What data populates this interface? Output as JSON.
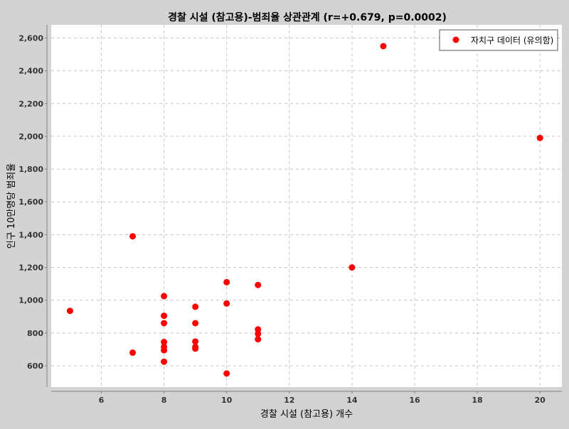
{
  "chart_data": {
    "type": "scatter",
    "title": "경찰 시설 (참고용)-범죄율 상관관계 (r=+0.679, p=0.0002)",
    "xlabel": "경찰 시설 (참고용) 개수",
    "ylabel": "인구 10만명당 범죄율",
    "xlim": [
      4.4,
      20.7
    ],
    "ylim": [
      470,
      2680
    ],
    "x_ticks": [
      6,
      8,
      10,
      12,
      14,
      16,
      18,
      20
    ],
    "y_ticks": [
      600,
      800,
      1000,
      1200,
      1400,
      1600,
      1800,
      2000,
      2200,
      2400,
      2600
    ],
    "x_tick_labels": [
      "6",
      "8",
      "10",
      "12",
      "14",
      "16",
      "18",
      "20"
    ],
    "y_tick_labels": [
      "600",
      "800",
      "1,000",
      "1,200",
      "1,400",
      "1,600",
      "1,800",
      "2,000",
      "2,200",
      "2,400",
      "2,600"
    ],
    "grid": true,
    "legend_position": "top-right",
    "series": [
      {
        "name": "자치구 데이터 (유의함)",
        "color": "#ff0000",
        "points": [
          {
            "x": 5,
            "y": 935
          },
          {
            "x": 7,
            "y": 1390
          },
          {
            "x": 7,
            "y": 680
          },
          {
            "x": 8,
            "y": 1025
          },
          {
            "x": 8,
            "y": 905
          },
          {
            "x": 8,
            "y": 860
          },
          {
            "x": 8,
            "y": 745
          },
          {
            "x": 8,
            "y": 715
          },
          {
            "x": 8,
            "y": 695
          },
          {
            "x": 8,
            "y": 625
          },
          {
            "x": 9,
            "y": 960
          },
          {
            "x": 9,
            "y": 860
          },
          {
            "x": 9,
            "y": 748
          },
          {
            "x": 9,
            "y": 715
          },
          {
            "x": 9,
            "y": 705
          },
          {
            "x": 10,
            "y": 1110
          },
          {
            "x": 10,
            "y": 980
          },
          {
            "x": 10,
            "y": 553
          },
          {
            "x": 11,
            "y": 1093
          },
          {
            "x": 11,
            "y": 822
          },
          {
            "x": 11,
            "y": 795
          },
          {
            "x": 11,
            "y": 762
          },
          {
            "x": 14,
            "y": 1200
          },
          {
            "x": 15,
            "y": 2550
          },
          {
            "x": 20,
            "y": 1990
          }
        ]
      }
    ]
  }
}
